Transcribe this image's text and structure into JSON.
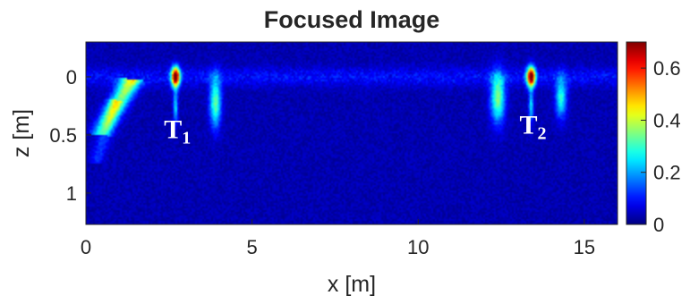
{
  "chart_data": {
    "type": "heatmap",
    "title": "Focused Image",
    "xlabel": "x [m]",
    "ylabel": "z [m]",
    "xlim": [
      0,
      16
    ],
    "zlim": [
      -0.3,
      1.27
    ],
    "z_reversed": true,
    "x_ticks": [
      0,
      5,
      10,
      15
    ],
    "x_tick_labels": [
      "0",
      "5",
      "10",
      "15"
    ],
    "z_ticks": [
      0,
      0.5,
      1
    ],
    "z_tick_labels": [
      "0",
      "0.5",
      "1"
    ],
    "colormap": "jet",
    "color_range": [
      0,
      0.7
    ],
    "colorbar_ticks": [
      0,
      0.2,
      0.4,
      0.6
    ],
    "colorbar_tick_labels": [
      "0",
      "0.2",
      "0.4",
      "0.6"
    ],
    "colorbar_position": "right",
    "background_level": 0.03,
    "hotspots": [
      {
        "x": 2.7,
        "z": 0.0,
        "sx": 0.09,
        "sz": 0.06,
        "value": 0.68
      },
      {
        "x": 13.4,
        "z": 0.0,
        "sx": 0.09,
        "sz": 0.06,
        "value": 0.68
      },
      {
        "x": 2.7,
        "z": 0.25,
        "sx": 0.05,
        "sz": 0.1,
        "value": 0.22
      },
      {
        "x": 13.4,
        "z": 0.25,
        "sx": 0.05,
        "sz": 0.1,
        "value": 0.22
      },
      {
        "x": 3.9,
        "z": 0.22,
        "sx": 0.12,
        "sz": 0.15,
        "value": 0.3
      },
      {
        "x": 12.4,
        "z": 0.18,
        "sx": 0.15,
        "sz": 0.15,
        "value": 0.32
      },
      {
        "x": 14.3,
        "z": 0.18,
        "sx": 0.12,
        "sz": 0.12,
        "value": 0.25
      }
    ],
    "streaks": [
      {
        "x0": 1.4,
        "z0": 0.02,
        "x1": 0.4,
        "z1": 0.5,
        "width": 0.22,
        "value": 0.38
      },
      {
        "x0": 0.9,
        "z0": 0.2,
        "x1": 0.3,
        "z1": 0.75,
        "width": 0.15,
        "value": 0.15
      }
    ],
    "annotations": [
      {
        "text": "T",
        "subscript": "1",
        "x": 2.35,
        "z": 0.42
      },
      {
        "text": "T",
        "subscript": "2",
        "x": 13.05,
        "z": 0.38
      }
    ]
  }
}
